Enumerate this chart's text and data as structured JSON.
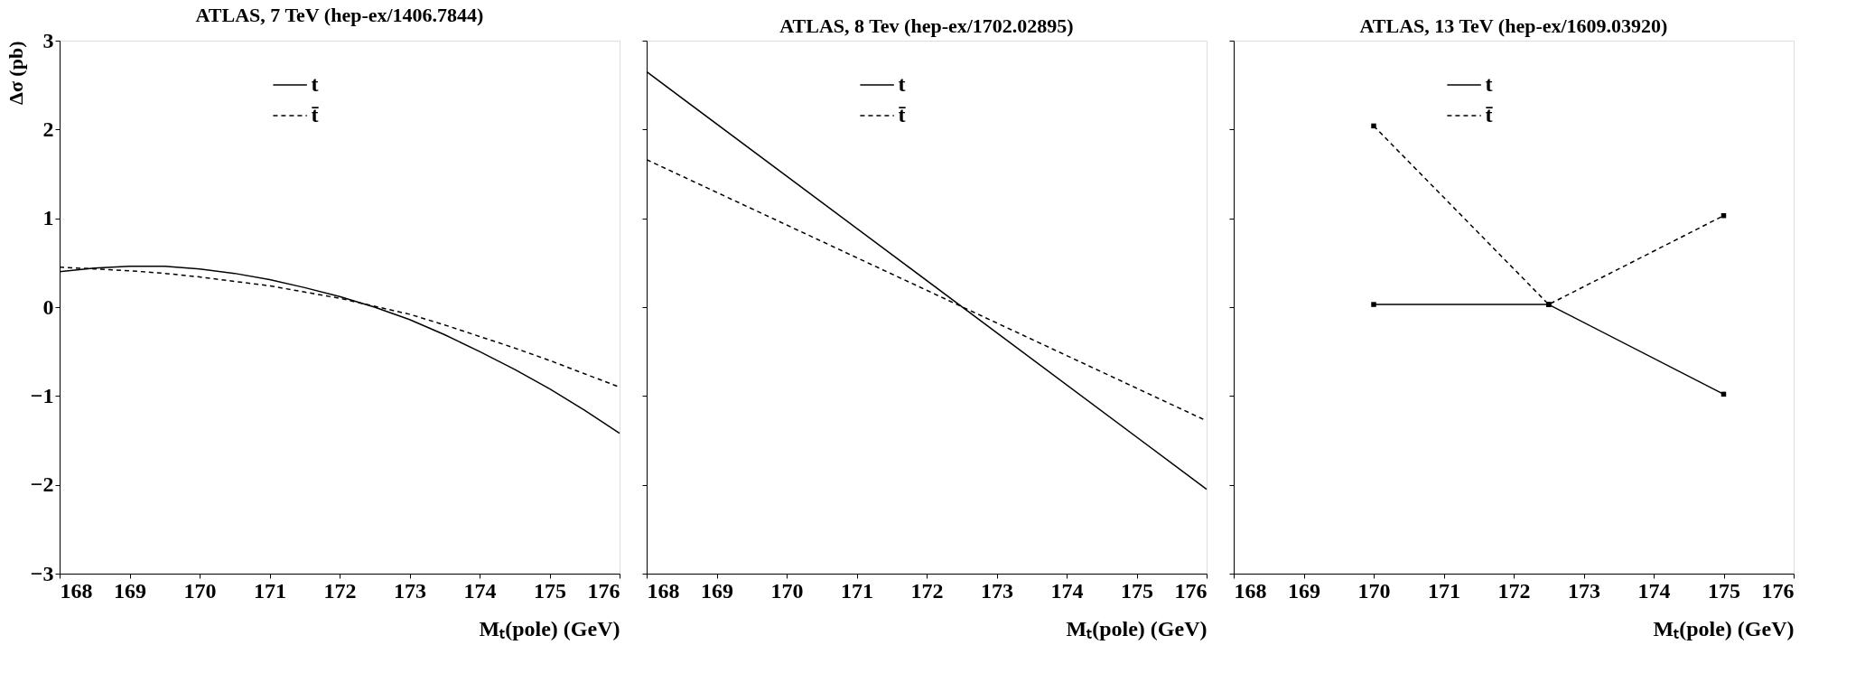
{
  "chart_data": [
    {
      "type": "line",
      "title": "ATLAS, 7 TeV (hep-ex/1406.7844)",
      "xlabel": "Mₜ(pole) (GeV)",
      "ylabel": "Δσ (pb)",
      "xlim": [
        168,
        176
      ],
      "ylim": [
        -3,
        3
      ],
      "xticks": [
        168,
        169,
        170,
        171,
        172,
        173,
        174,
        175,
        176
      ],
      "yticks": [
        -3,
        -2,
        -1,
        0,
        1,
        2,
        3
      ],
      "grid": false,
      "legend": "top",
      "marker": "none",
      "x": [
        168,
        168.5,
        169,
        169.5,
        170,
        170.5,
        171,
        171.5,
        172,
        172.5,
        173,
        173.5,
        174,
        174.5,
        175,
        175.5,
        176
      ],
      "series": [
        {
          "name": "t",
          "color": "#000000",
          "line_style": "solid",
          "values": [
            0.4,
            0.44,
            0.46,
            0.46,
            0.43,
            0.38,
            0.31,
            0.22,
            0.12,
            0.0,
            -0.14,
            -0.31,
            -0.5,
            -0.7,
            -0.92,
            -1.16,
            -1.42
          ]
        },
        {
          "name": "t̄",
          "color": "#000000",
          "line_style": "dashed",
          "values": [
            0.45,
            0.43,
            0.41,
            0.38,
            0.34,
            0.29,
            0.24,
            0.17,
            0.1,
            0.01,
            -0.08,
            -0.2,
            -0.33,
            -0.46,
            -0.6,
            -0.75,
            -0.9
          ]
        }
      ]
    },
    {
      "type": "line",
      "title": "ATLAS, 8 Tev (hep-ex/1702.02895)",
      "xlabel": "Mₜ(pole) (GeV)",
      "xlim": [
        168,
        176
      ],
      "ylim": [
        -3,
        3
      ],
      "xticks": [
        168,
        169,
        170,
        171,
        172,
        173,
        174,
        175,
        176
      ],
      "yticks": [
        -3,
        -2,
        -1,
        0,
        1,
        2,
        3
      ],
      "tick_labels": "x",
      "grid": false,
      "legend": "top",
      "marker": "none",
      "x": [
        168,
        176
      ],
      "series": [
        {
          "name": "t",
          "color": "#000000",
          "line_style": "solid",
          "values": [
            2.65,
            -2.05
          ]
        },
        {
          "name": "t̄",
          "color": "#000000",
          "line_style": "dashed",
          "values": [
            1.66,
            -1.28
          ]
        }
      ]
    },
    {
      "type": "line",
      "title": "ATLAS, 13 TeV (hep-ex/1609.03920)",
      "xlabel": "Mₜ(pole) (GeV)",
      "xlim": [
        168,
        176
      ],
      "ylim": [
        -3,
        3
      ],
      "xticks": [
        168,
        169,
        170,
        171,
        172,
        173,
        174,
        175,
        176
      ],
      "yticks": [
        -3,
        -2,
        -1,
        0,
        1,
        2,
        3
      ],
      "tick_labels": "x",
      "grid": false,
      "legend": "top",
      "marker": "square",
      "x": [
        170,
        172.5,
        175
      ],
      "series": [
        {
          "name": "t",
          "color": "#000000",
          "line_style": "solid",
          "values": [
            0.03,
            0.03,
            -0.98
          ]
        },
        {
          "name": "t̄",
          "color": "#000000",
          "line_style": "dashed",
          "values": [
            2.04,
            0.03,
            1.03
          ]
        }
      ]
    }
  ]
}
